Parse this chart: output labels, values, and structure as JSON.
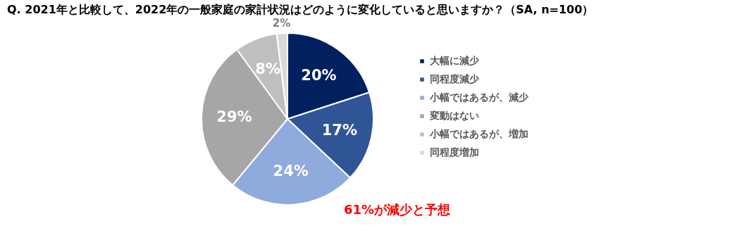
{
  "chart_data": {
    "type": "pie",
    "title": "Q. 2021年と比較して、2022年の一般家庭の家計状況はどのように変化していると思いますか？（SA, n=100）",
    "categories": [
      "大幅に減少",
      "同程度減少",
      "小幅ではあるが、減少",
      "変動はない",
      "小幅ではあるが、増加",
      "同程度増加"
    ],
    "values": [
      20,
      17,
      24,
      29,
      8,
      2
    ],
    "value_labels": [
      "20%",
      "17%",
      "24%",
      "29%",
      "8%",
      "2%"
    ],
    "colors": [
      "#002060",
      "#2f5597",
      "#8faadc",
      "#a6a6a6",
      "#bfbfbf",
      "#d9d9d9"
    ],
    "legend": "right",
    "annotations": [
      "61%が減少と予想"
    ]
  }
}
